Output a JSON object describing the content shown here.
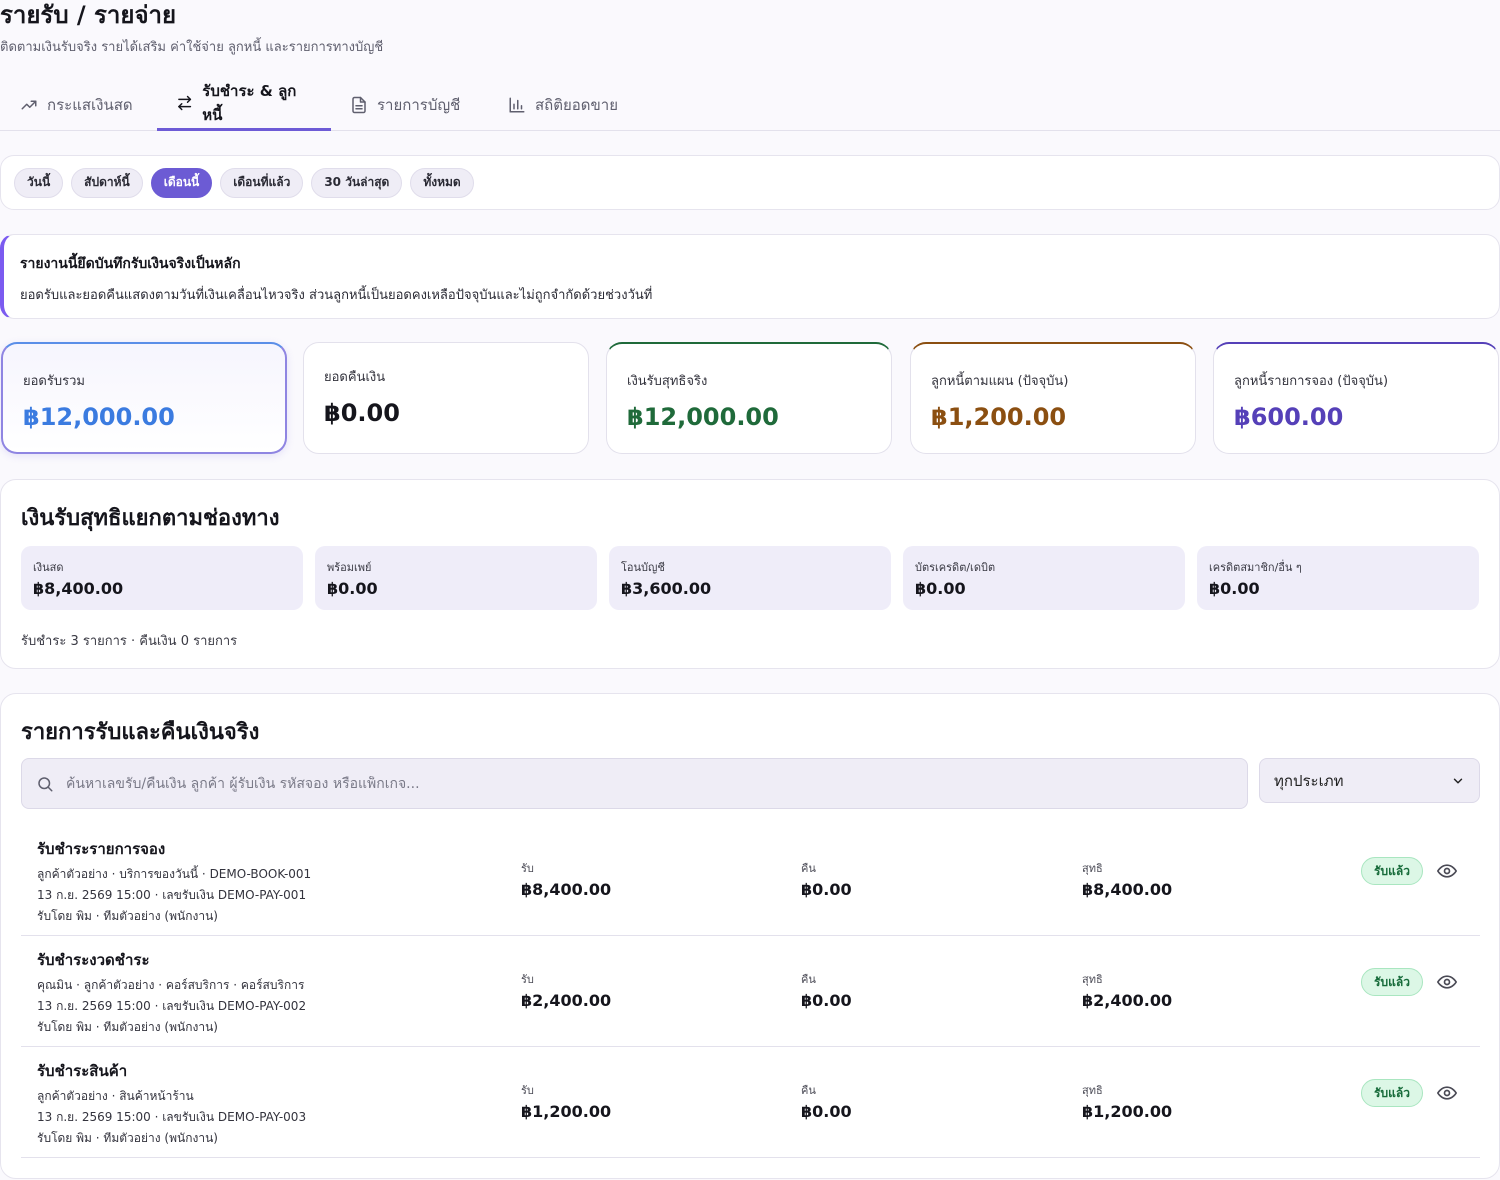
{
  "header": {
    "title": "รายรับ / รายจ่าย",
    "subtitle": "ติดตามเงินรับจริง รายได้เสริม ค่าใช้จ่าย ลูกหนี้ และรายการทางบัญชี"
  },
  "tabs": [
    {
      "label": "กระแสเงินสด",
      "icon": "trending-up-icon"
    },
    {
      "label": "รับชำระ & ลูกหนี้",
      "icon": "arrows-exchange-icon",
      "active": true
    },
    {
      "label": "รายการบัญชี",
      "icon": "document-icon"
    },
    {
      "label": "สถิติยอดขาย",
      "icon": "bar-chart-icon"
    }
  ],
  "filters": [
    "วันนี้",
    "สัปดาห์นี้",
    "เดือนนี้",
    "เดือนที่แล้ว",
    "30 วันล่าสุด",
    "ทั้งหมด"
  ],
  "active_filter": "เดือนนี้",
  "notice": {
    "title": "รายงานนี้ยึดบันทึกรับเงินจริงเป็นหลัก",
    "text": "ยอดรับและยอดคืนแสดงตามวันที่เงินเคลื่อนไหวจริง ส่วนลูกหนี้เป็นยอดคงเหลือปัจจุบันและไม่ถูกจำกัดด้วยช่วงวันที่"
  },
  "stats": [
    {
      "label": "ยอดรับรวม",
      "value": "฿12,000.00",
      "color": "#3b7be0"
    },
    {
      "label": "ยอดคืนเงิน",
      "value": "฿0.00",
      "color": "#15151c"
    },
    {
      "label": "เงินรับสุทธิจริง",
      "value": "฿12,000.00",
      "color": "#1f6a3a"
    },
    {
      "label": "ลูกหนี้ตามแผน (ปัจจุบัน)",
      "value": "฿1,200.00",
      "color": "#8b4f11"
    },
    {
      "label": "ลูกหนี้รายการจอง (ปัจจุบัน)",
      "value": "฿600.00",
      "color": "#5540b8"
    }
  ],
  "channels": {
    "title": "เงินรับสุทธิแยกตามช่องทาง",
    "items": [
      {
        "label": "เงินสด",
        "value": "฿8,400.00"
      },
      {
        "label": "พร้อมเพย์",
        "value": "฿0.00"
      },
      {
        "label": "โอนบัญชี",
        "value": "฿3,600.00"
      },
      {
        "label": "บัตรเครดิต/เดบิต",
        "value": "฿0.00"
      },
      {
        "label": "เครดิตสมาชิก/อื่น ๆ",
        "value": "฿0.00"
      }
    ],
    "summary": "รับชำระ 3 รายการ · คืนเงิน 0 รายการ"
  },
  "transactions": {
    "title": "รายการรับและคืนเงินจริง",
    "search_placeholder": "ค้นหาเลขรับ/คืนเงิน ลูกค้า ผู้รับเงิน รหัสจอง หรือแพ็กเกจ...",
    "type_filter": "ทุกประเภท",
    "col_receive": "รับ",
    "col_refund": "คืน",
    "col_net": "สุทธิ",
    "rows": [
      {
        "title": "รับชำระรายการจอง",
        "line1": "ลูกค้าตัวอย่าง · บริการของวันนี้ · DEMO-BOOK-001",
        "line2": "13 ก.ย. 2569 15:00 · เลขรับเงิน DEMO-PAY-001",
        "line3": "รับโดย พิม · ทีมตัวอย่าง (พนักงาน)",
        "receive": "฿8,400.00",
        "refund": "฿0.00",
        "net": "฿8,400.00",
        "status": "รับแล้ว"
      },
      {
        "title": "รับชำระงวดชำระ",
        "line1": "คุณมิน · ลูกค้าตัวอย่าง · คอร์สบริการ · คอร์สบริการ",
        "line2": "13 ก.ย. 2569 15:00 · เลขรับเงิน DEMO-PAY-002",
        "line3": "รับโดย พิม · ทีมตัวอย่าง (พนักงาน)",
        "receive": "฿2,400.00",
        "refund": "฿0.00",
        "net": "฿2,400.00",
        "status": "รับแล้ว"
      },
      {
        "title": "รับชำระสินค้า",
        "line1": "ลูกค้าตัวอย่าง · สินค้าหน้าร้าน",
        "line2": "13 ก.ย. 2569 15:00 · เลขรับเงิน DEMO-PAY-003",
        "line3": "รับโดย พิม · ทีมตัวอย่าง (พนักงาน)",
        "receive": "฿1,200.00",
        "refund": "฿0.00",
        "net": "฿1,200.00",
        "status": "รับแล้ว"
      }
    ]
  }
}
